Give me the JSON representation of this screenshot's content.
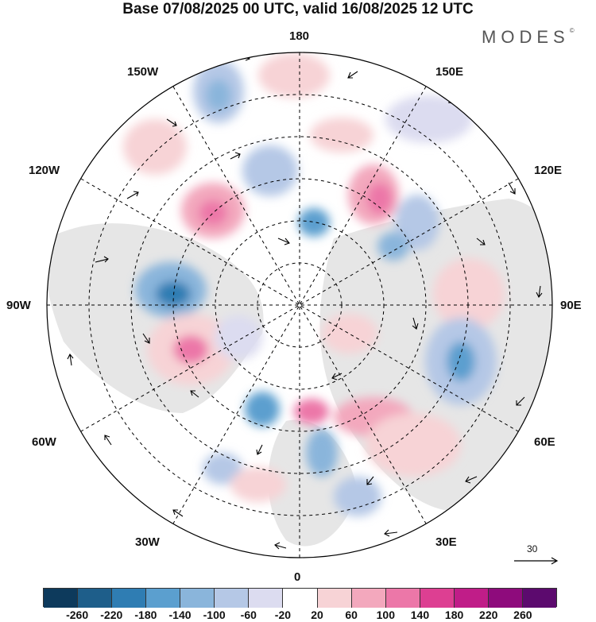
{
  "header": {
    "title": "Base 07/08/2025 00 UTC, valid 16/08/2025 12 UTC",
    "brand": "MODES",
    "brand_mark": "©"
  },
  "map": {
    "projection": "north-polar-stereographic",
    "longitude_labels": {
      "top": "180",
      "bottom": "0",
      "left": "90W",
      "right": "90E",
      "upper_left_1": "150W",
      "upper_left_2": "120W",
      "lower_left_1": "60W",
      "lower_left_2": "30W",
      "upper_right_1": "150E",
      "upper_right_2": "120E",
      "lower_right_1": "60E",
      "lower_right_2": "30E"
    },
    "reference_vector": "30"
  },
  "colorbar": {
    "colors": [
      "#0d3a5c",
      "#1e5e8a",
      "#2f7db3",
      "#5b9fcf",
      "#8ab5db",
      "#b5c8e6",
      "#dcdcf0",
      "#ffffff",
      "#f7d3d6",
      "#f3a8bd",
      "#ec77a8",
      "#dd3f92",
      "#c01d88",
      "#8e0b7c",
      "#5c0a6e"
    ],
    "ticks": [
      "-260",
      "-220",
      "-180",
      "-140",
      "-100",
      "-60",
      "-20",
      "20",
      "60",
      "100",
      "140",
      "180",
      "220",
      "260"
    ]
  }
}
